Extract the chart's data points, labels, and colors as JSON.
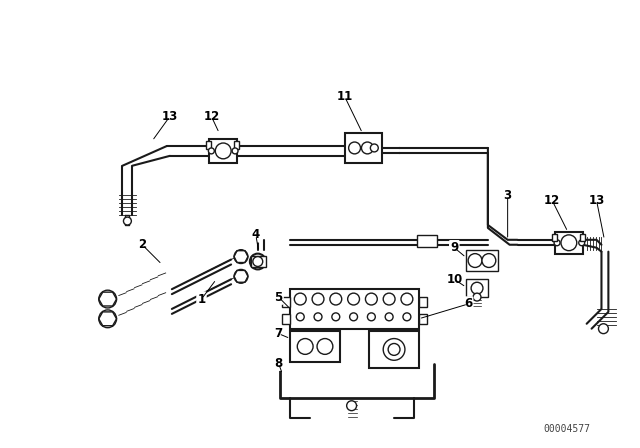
{
  "background_color": "#ffffff",
  "line_color": "#1a1a1a",
  "text_color": "#000000",
  "watermark": "00004577",
  "font_size_labels": 8.5,
  "font_size_watermark": 7,
  "figsize": [
    6.4,
    4.48
  ],
  "dpi": 100
}
